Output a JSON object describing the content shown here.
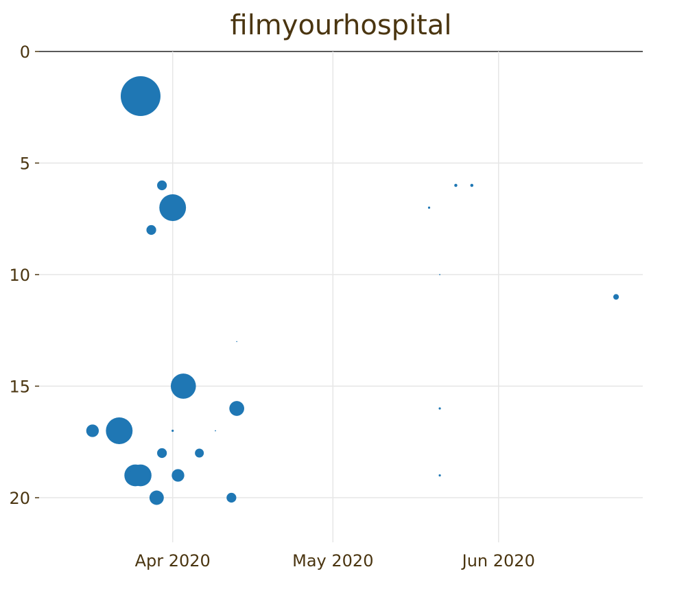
{
  "chart_data": {
    "type": "scatter",
    "title": "filmyourhospital",
    "xlabel": "",
    "ylabel": "",
    "x_axis": {
      "type": "date",
      "range": [
        "2020-03-07",
        "2020-06-28"
      ],
      "tick_values": [
        "2020-04-01",
        "2020-05-01",
        "2020-06-01"
      ],
      "tick_labels": [
        "Apr 2020",
        "May 2020",
        "Jun 2020"
      ],
      "grid": true
    },
    "y_axis": {
      "range": [
        0,
        22
      ],
      "reversed": true,
      "tick_values": [
        0,
        5,
        10,
        15,
        20
      ],
      "tick_labels": [
        "0",
        "5",
        "10",
        "15",
        "20"
      ],
      "grid": true
    },
    "marker_color": "#1f77b4",
    "size_meaning": "marker area proportional to value (relative)",
    "series": [
      {
        "points": [
          {
            "x": "2020-03-26",
            "y": 2,
            "size": 100
          },
          {
            "x": "2020-03-30",
            "y": 6,
            "size": 6
          },
          {
            "x": "2020-04-01",
            "y": 7,
            "size": 45
          },
          {
            "x": "2020-03-28",
            "y": 8,
            "size": 6
          },
          {
            "x": "2020-04-03",
            "y": 15,
            "size": 40
          },
          {
            "x": "2020-04-13",
            "y": 16,
            "size": 14
          },
          {
            "x": "2020-03-17",
            "y": 17,
            "size": 10
          },
          {
            "x": "2020-03-22",
            "y": 17,
            "size": 45
          },
          {
            "x": "2020-04-01",
            "y": 17,
            "size": 0.3
          },
          {
            "x": "2020-04-09",
            "y": 17,
            "size": 0.1
          },
          {
            "x": "2020-03-30",
            "y": 18,
            "size": 6
          },
          {
            "x": "2020-04-06",
            "y": 18,
            "size": 5
          },
          {
            "x": "2020-03-25",
            "y": 19,
            "size": 30
          },
          {
            "x": "2020-03-26",
            "y": 19,
            "size": 30
          },
          {
            "x": "2020-04-02",
            "y": 19,
            "size": 10
          },
          {
            "x": "2020-03-29",
            "y": 20,
            "size": 13
          },
          {
            "x": "2020-04-12",
            "y": 20,
            "size": 6
          },
          {
            "x": "2020-04-13",
            "y": 13,
            "size": 0.05
          },
          {
            "x": "2020-05-19",
            "y": 7,
            "size": 0.3
          },
          {
            "x": "2020-05-24",
            "y": 6,
            "size": 0.6
          },
          {
            "x": "2020-05-27",
            "y": 6,
            "size": 0.6
          },
          {
            "x": "2020-05-21",
            "y": 10,
            "size": 0.1
          },
          {
            "x": "2020-05-21",
            "y": 16,
            "size": 0.3
          },
          {
            "x": "2020-05-21",
            "y": 19,
            "size": 0.3
          },
          {
            "x": "2020-06-23",
            "y": 11,
            "size": 2
          }
        ]
      }
    ]
  }
}
